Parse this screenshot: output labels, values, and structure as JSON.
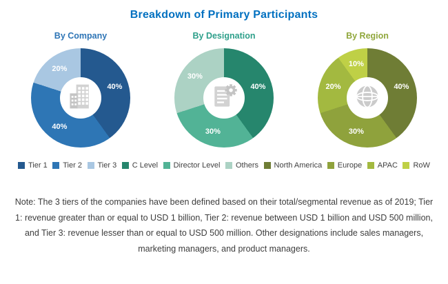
{
  "title": "Breakdown of Primary Participants",
  "colors": {
    "title": "#0070C0",
    "note_text": "#3D3D3D"
  },
  "chart_data": [
    {
      "type": "donut",
      "title": "By Company",
      "title_color": "#2E75B6",
      "center_icon": "building-icon",
      "segments": [
        {
          "label": "Tier 1",
          "value": 40,
          "color": "#24598F"
        },
        {
          "label": "Tier 2",
          "value": 40,
          "color": "#2E76B5"
        },
        {
          "label": "Tier 3",
          "value": 20,
          "color": "#A9C7E2"
        }
      ]
    },
    {
      "type": "donut",
      "title": "By Designation",
      "title_color": "#2FA08B",
      "center_icon": "document-gear-icon",
      "segments": [
        {
          "label": "C Level",
          "value": 40,
          "color": "#26866D"
        },
        {
          "label": "Director Level",
          "value": 30,
          "color": "#52B396"
        },
        {
          "label": "Others",
          "value": 30,
          "color": "#ACD2C4"
        }
      ]
    },
    {
      "type": "donut",
      "title": "By Region",
      "title_color": "#90A73C",
      "center_icon": "globe-icon",
      "segments": [
        {
          "label": "North America",
          "value": 40,
          "color": "#6F7D35"
        },
        {
          "label": "Europe",
          "value": 30,
          "color": "#8FA23C"
        },
        {
          "label": "APAC",
          "value": 20,
          "color": "#A3B940"
        },
        {
          "label": "RoW",
          "value": 10,
          "color": "#BFD046"
        }
      ]
    }
  ],
  "note": "Note: The 3 tiers of the companies have been defined based on their total/segmental revenue as of 2019; Tier 1: revenue greater than or equal to USD 1 billion, Tier 2: revenue between USD 1 billion and USD 500 million, and Tier 3: revenue lesser than or equal to USD 500 million. Other designations include sales managers, marketing managers, and product managers."
}
